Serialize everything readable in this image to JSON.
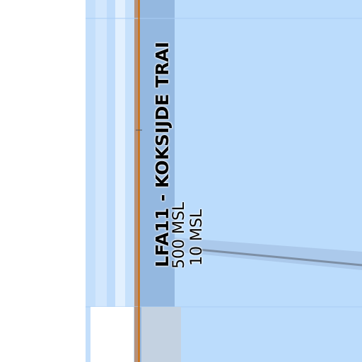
{
  "airspace": {
    "name": "LFA11 - KOKSIJDE TRAI",
    "upper_limit": "500 MSL",
    "lower_limit": "10 MSL"
  },
  "colors": {
    "land": "#ffffff",
    "sea": "#bbdcfc",
    "shallow_water": "#d5e8fd",
    "airspace_fill": "#94b8e0",
    "boundary_line": "#d16d00",
    "beach": "#b6917a"
  }
}
